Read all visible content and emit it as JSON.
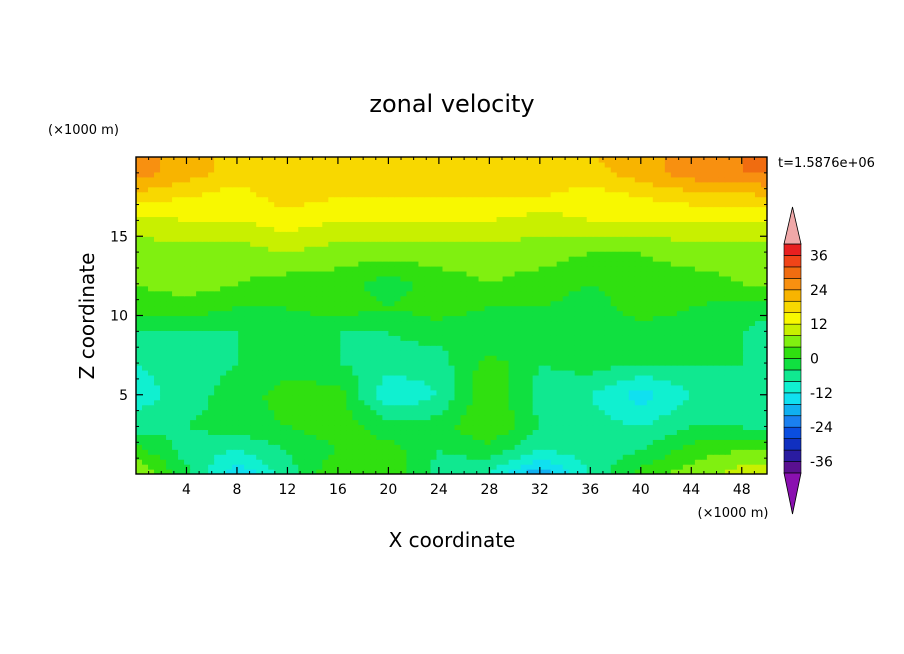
{
  "chart_data": {
    "type": "heatmap",
    "title": "zonal velocity",
    "time_label": "t=1.5876e+06",
    "xlabel": "X coordinate",
    "ylabel": "Z coordinate",
    "x_unit": "(×1000 m)",
    "y_unit": "(×1000 m)",
    "xlim": [
      0,
      50
    ],
    "ylim": [
      0,
      20
    ],
    "x_ticks": [
      4,
      8,
      12,
      16,
      20,
      24,
      28,
      32,
      36,
      40,
      44,
      48
    ],
    "y_ticks": [
      5,
      10,
      15
    ],
    "grid": false,
    "colorbar": {
      "levels": [
        -40,
        -36,
        -32,
        -28,
        -24,
        -20,
        -16,
        -12,
        -8,
        -4,
        0,
        4,
        8,
        12,
        16,
        20,
        24,
        28,
        32,
        36,
        40
      ],
      "tick_labels": [
        36,
        24,
        12,
        0,
        -12,
        -24,
        -36
      ],
      "colors": [
        "#5a1090",
        "#2a1ca0",
        "#1030c0",
        "#0a4ee0",
        "#1a80f0",
        "#10b0f0",
        "#10e0f0",
        "#10f0d0",
        "#10e890",
        "#10e040",
        "#30e010",
        "#80f010",
        "#c8f000",
        "#f8f800",
        "#f8d800",
        "#f8b400",
        "#f89010",
        "#f06c10",
        "#f04418",
        "#e82020"
      ],
      "over_color": "#f0a8a8",
      "under_color": "#8a10b0",
      "extend": "both"
    },
    "field_grid": {
      "x": [
        0,
        4,
        8,
        12,
        16,
        20,
        24,
        28,
        32,
        36,
        40,
        44,
        48,
        50
      ],
      "z": [
        0,
        1.5,
        3,
        5,
        7,
        9,
        10.5,
        12,
        14,
        16,
        17.5,
        19,
        20
      ],
      "values": [
        [
          8,
          -2,
          -16,
          -6,
          4,
          4,
          -6,
          -8,
          -20,
          -8,
          2,
          6,
          10,
          10
        ],
        [
          2,
          -6,
          -8,
          -4,
          0,
          2,
          -4,
          -2,
          -8,
          -6,
          -4,
          2,
          4,
          4
        ],
        [
          -6,
          -4,
          -2,
          0,
          2,
          -2,
          -2,
          4,
          -4,
          -6,
          -8,
          -4,
          -4,
          -6
        ],
        [
          -10,
          -6,
          -2,
          2,
          2,
          -12,
          -8,
          4,
          -6,
          -8,
          -14,
          -8,
          -6,
          -8
        ],
        [
          -8,
          -6,
          -4,
          -2,
          -4,
          -6,
          -6,
          2,
          -4,
          -2,
          -4,
          -4,
          -4,
          -6
        ],
        [
          -4,
          -4,
          -4,
          -2,
          -4,
          -4,
          -2,
          -4,
          -4,
          -4,
          -2,
          -2,
          -4,
          -6
        ],
        [
          2,
          2,
          0,
          0,
          2,
          0,
          2,
          0,
          0,
          -2,
          2,
          0,
          -2,
          -2
        ],
        [
          4,
          6,
          4,
          2,
          2,
          -2,
          2,
          4,
          2,
          0,
          2,
          2,
          4,
          4
        ],
        [
          6,
          6,
          6,
          8,
          6,
          6,
          6,
          6,
          6,
          4,
          4,
          6,
          6,
          6
        ],
        [
          10,
          12,
          12,
          14,
          12,
          12,
          12,
          12,
          10,
          12,
          12,
          12,
          12,
          12
        ],
        [
          18,
          16,
          14,
          18,
          16,
          16,
          16,
          16,
          16,
          14,
          16,
          18,
          18,
          20
        ],
        [
          26,
          22,
          18,
          20,
          18,
          16,
          18,
          18,
          20,
          18,
          22,
          26,
          28,
          28
        ],
        [
          26,
          22,
          18,
          18,
          16,
          16,
          16,
          18,
          20,
          20,
          22,
          26,
          28,
          28
        ]
      ]
    }
  }
}
